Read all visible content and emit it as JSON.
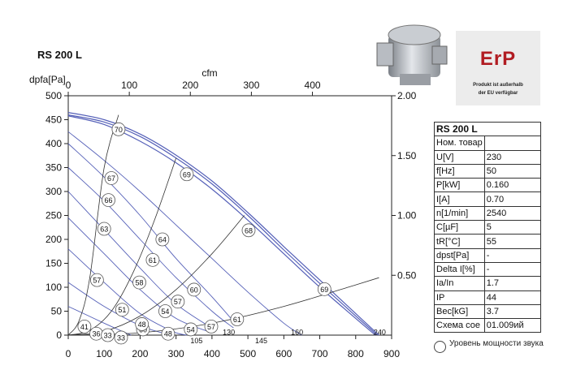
{
  "model_title": "RS 200 L",
  "chart_data": {
    "type": "line",
    "title": "",
    "xlabel_bottom": "",
    "xlabel_top": "cfm",
    "ylabel_left": "dpfa[Pa]",
    "ylabel_right": "",
    "x_range": [
      0,
      900
    ],
    "y_range": [
      0,
      500
    ],
    "x_ticks": [
      0,
      100,
      200,
      300,
      400,
      500,
      600,
      700,
      800,
      900
    ],
    "y_ticks": [
      0,
      50,
      100,
      150,
      200,
      250,
      300,
      350,
      400,
      450,
      500
    ],
    "x2_ticks": [
      0,
      100,
      200,
      300,
      400
    ],
    "x2_factor": 1.699,
    "y2_ticks": [
      "0.50",
      "1.00",
      "1.50",
      "2.00"
    ],
    "y2_factor": 250,
    "series": [
      {
        "x": [
          0,
          100,
          200,
          300,
          400,
          500,
          600,
          700,
          800,
          865
        ],
        "y": [
          465,
          450,
          420,
          376,
          322,
          256,
          185,
          115,
          45,
          0
        ]
      },
      {
        "x": [
          0,
          100,
          200,
          300,
          400,
          500,
          600,
          700,
          800,
          860
        ],
        "y": [
          460,
          445,
          415,
          370,
          316,
          250,
          178,
          108,
          40,
          0
        ]
      },
      {
        "x": [
          0,
          100,
          200,
          300,
          400,
          500,
          600,
          700,
          800,
          855
        ],
        "y": [
          458,
          440,
          405,
          360,
          305,
          240,
          170,
          100,
          35,
          0
        ]
      },
      {
        "x": [
          0,
          100,
          200,
          300,
          400,
          500,
          600,
          650
        ],
        "y": [
          425,
          365,
          300,
          230,
          160,
          90,
          25,
          0
        ]
      },
      {
        "x": [
          0,
          100,
          200,
          300,
          400,
          470
        ],
        "y": [
          400,
          330,
          250,
          160,
          80,
          20
        ]
      },
      {
        "x": [
          0,
          100,
          200,
          300,
          400,
          460
        ],
        "y": [
          350,
          280,
          200,
          120,
          50,
          15
        ]
      },
      {
        "x": [
          0,
          100,
          200,
          300,
          410
        ],
        "y": [
          300,
          220,
          140,
          65,
          10
        ]
      },
      {
        "x": [
          0,
          100,
          200,
          300,
          400
        ],
        "y": [
          245,
          170,
          95,
          35,
          5
        ]
      },
      {
        "x": [
          0,
          100,
          200,
          290,
          330
        ],
        "y": [
          180,
          110,
          45,
          8,
          0
        ]
      },
      {
        "x": [
          0,
          100,
          200,
          260
        ],
        "y": [
          110,
          60,
          20,
          5
        ]
      },
      {
        "x": [
          0,
          100,
          150,
          175
        ],
        "y": [
          60,
          25,
          8,
          0
        ]
      }
    ],
    "system_curves": [
      {
        "x": [
          0,
          30,
          60,
          100,
          140
        ],
        "y": [
          0,
          30,
          120,
          350,
          460
        ]
      },
      {
        "x": [
          0,
          60,
          120,
          180,
          240,
          300
        ],
        "y": [
          0,
          10,
          50,
          130,
          240,
          370
        ]
      },
      {
        "x": [
          0,
          100,
          200,
          300,
          400,
          490
        ],
        "y": [
          0,
          8,
          40,
          95,
          170,
          250
        ]
      },
      {
        "x": [
          0,
          200,
          400,
          600,
          800,
          865
        ],
        "y": [
          0,
          5,
          25,
          60,
          105,
          120
        ]
      }
    ],
    "sound_labels": [
      {
        "text": "70",
        "x": 140,
        "y": 430
      },
      {
        "text": "67",
        "x": 120,
        "y": 328
      },
      {
        "text": "66",
        "x": 112,
        "y": 282
      },
      {
        "text": "63",
        "x": 100,
        "y": 222
      },
      {
        "text": "57",
        "x": 80,
        "y": 115
      },
      {
        "text": "51",
        "x": 150,
        "y": 53
      },
      {
        "text": "41",
        "x": 45,
        "y": 18
      },
      {
        "text": "36",
        "x": 78,
        "y": 3
      },
      {
        "text": "33",
        "x": 110,
        "y": 0
      },
      {
        "text": "33",
        "x": 147,
        "y": -5
      },
      {
        "text": "60",
        "x": 208,
        "y": 12
      },
      {
        "text": "48",
        "x": 205,
        "y": 23
      },
      {
        "text": "48",
        "x": 278,
        "y": 3
      },
      {
        "text": "54",
        "x": 270,
        "y": 50
      },
      {
        "text": "54",
        "x": 341,
        "y": 12
      },
      {
        "text": "57",
        "x": 305,
        "y": 70
      },
      {
        "text": "57",
        "x": 398,
        "y": 18
      },
      {
        "text": "58",
        "x": 198,
        "y": 110
      },
      {
        "text": "61",
        "x": 235,
        "y": 157
      },
      {
        "text": "64",
        "x": 262,
        "y": 200
      },
      {
        "text": "60",
        "x": 350,
        "y": 95
      },
      {
        "text": "61",
        "x": 470,
        "y": 33
      },
      {
        "text": "69",
        "x": 330,
        "y": 336
      },
      {
        "text": "68",
        "x": 502,
        "y": 219
      },
      {
        "text": "69",
        "x": 713,
        "y": 96
      }
    ],
    "flow_labels": [
      {
        "text": "105",
        "x": 340,
        "y": -10
      },
      {
        "text": "130",
        "x": 430,
        "y": 8
      },
      {
        "text": "145",
        "x": 520,
        "y": -10
      },
      {
        "text": "160",
        "x": 620,
        "y": 8
      },
      {
        "text": "240",
        "x": 850,
        "y": 8
      }
    ]
  },
  "erp": {
    "word": "ErP",
    "line1": "Produkt ist außerhalb",
    "line2": "der EU verfügbar"
  },
  "table": {
    "header": "RS 200 L",
    "rows": [
      {
        "k": "Ном. товар",
        "v": ""
      },
      {
        "k": "U[V]",
        "v": "230"
      },
      {
        "k": "f[Hz]",
        "v": "50"
      },
      {
        "k": "P[kW]",
        "v": "0.160"
      },
      {
        "k": "I[A]",
        "v": "0.70"
      },
      {
        "k": "n[1/min]",
        "v": "2540"
      },
      {
        "k": "C[µF]",
        "v": "5"
      },
      {
        "k": "tR[°C]",
        "v": "55"
      },
      {
        "k": "dpst[Pa]",
        "v": "-"
      },
      {
        "k": "Delta I[%]",
        "v": "-"
      },
      {
        "k": "Ia/In",
        "v": "1.7"
      },
      {
        "k": "IP",
        "v": "44"
      },
      {
        "k": "Вес[kG]",
        "v": "3.7"
      },
      {
        "k": "Схема сое",
        "v": "01.009ий"
      }
    ]
  },
  "legend": {
    "line1": "Уровень  мощности звука",
    "line2": ""
  },
  "colors": {
    "fan_curve": "#5560b8",
    "line": "#222222",
    "erp_red": "#b11c22"
  }
}
